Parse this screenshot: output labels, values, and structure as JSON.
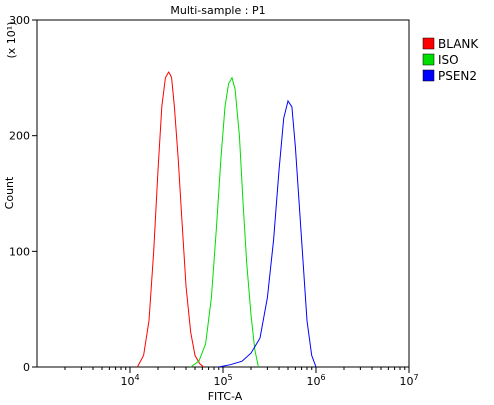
{
  "chart_data": {
    "type": "line",
    "title": "Multi-sample : P1",
    "xlabel": "FITC-A",
    "ylabel": "Count",
    "y_multiplier_label": "(x 10¹)",
    "x_scale": "log",
    "xlim": [
      1000,
      10000000
    ],
    "ylim": [
      0,
      300
    ],
    "x_ticks": [
      {
        "value": 10000,
        "base": "10",
        "exp": "4"
      },
      {
        "value": 100000,
        "base": "10",
        "exp": "5"
      },
      {
        "value": 1000000,
        "base": "10",
        "exp": "6"
      },
      {
        "value": 10000000,
        "base": "10",
        "exp": "7"
      }
    ],
    "y_ticks": [
      0,
      100,
      200,
      300
    ],
    "grid": false,
    "legend_position": "right",
    "series": [
      {
        "name": "BLANK",
        "color": "#ff0000",
        "x": [
          12000,
          14000,
          16000,
          18000,
          20000,
          22000,
          24000,
          26000,
          27000,
          28000,
          30000,
          33000,
          36000,
          40000,
          45000,
          50000,
          56000,
          62000
        ],
        "y": [
          0,
          10,
          40,
          100,
          170,
          225,
          250,
          255,
          253,
          250,
          225,
          180,
          130,
          70,
          30,
          10,
          3,
          0
        ]
      },
      {
        "name": "ISO",
        "color": "#00dd00",
        "x": [
          45000,
          55000,
          65000,
          75000,
          85000,
          95000,
          105000,
          115000,
          125000,
          135000,
          150000,
          165000,
          180000,
          200000,
          220000,
          240000
        ],
        "y": [
          0,
          5,
          20,
          60,
          120,
          180,
          225,
          245,
          250,
          240,
          200,
          140,
          90,
          45,
          15,
          0
        ]
      },
      {
        "name": "PSEN2",
        "color": "#0000ff",
        "x": [
          90000,
          120000,
          160000,
          200000,
          250000,
          300000,
          350000,
          400000,
          450000,
          500000,
          550000,
          600000,
          700000,
          800000,
          900000,
          1000000
        ],
        "y": [
          0,
          2,
          5,
          12,
          25,
          60,
          110,
          170,
          215,
          230,
          225,
          190,
          110,
          40,
          10,
          0
        ]
      }
    ]
  }
}
